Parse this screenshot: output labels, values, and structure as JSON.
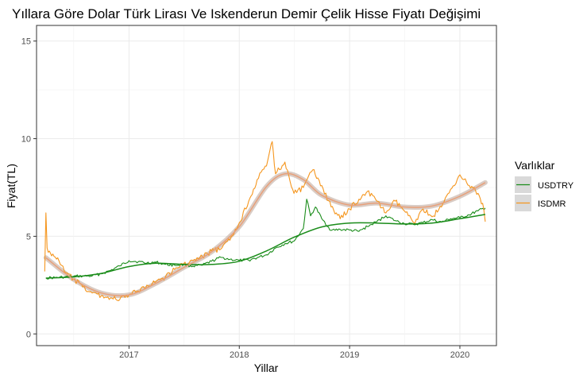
{
  "chart_data": {
    "type": "line",
    "title": "Yıllara Göre Dolar Türk Lirası Ve  Iskenderun Demir Çelik Hisse Fiyatı Değişimi",
    "xlabel": "Yillar",
    "ylabel": "Fiyat(TL)",
    "xlim": [
      "2016-03-01",
      "2020-05-01"
    ],
    "ylim": [
      -0.6,
      15.8
    ],
    "x_ticks": [
      {
        "label": "2017",
        "date": "2017-01-01"
      },
      {
        "label": "2018",
        "date": "2018-01-01"
      },
      {
        "label": "2019",
        "date": "2019-01-01"
      },
      {
        "label": "2020",
        "date": "2020-01-01"
      }
    ],
    "y_ticks": [
      0,
      5,
      10,
      15
    ],
    "grid": true,
    "legend": {
      "title": "Varlıklar",
      "position": "right"
    },
    "series": [
      {
        "name": "USDTRY",
        "color": "#1a8c1a",
        "points": [
          [
            "2016-04-01",
            2.87
          ],
          [
            "2016-05-01",
            2.88
          ],
          [
            "2016-06-01",
            2.91
          ],
          [
            "2016-07-01",
            2.95
          ],
          [
            "2016-08-01",
            2.96
          ],
          [
            "2016-09-01",
            2.97
          ],
          [
            "2016-10-01",
            3.08
          ],
          [
            "2016-11-01",
            3.25
          ],
          [
            "2016-12-01",
            3.48
          ],
          [
            "2017-01-01",
            3.75
          ],
          [
            "2017-02-01",
            3.7
          ],
          [
            "2017-03-01",
            3.63
          ],
          [
            "2017-04-01",
            3.67
          ],
          [
            "2017-05-01",
            3.56
          ],
          [
            "2017-06-01",
            3.52
          ],
          [
            "2017-07-01",
            3.55
          ],
          [
            "2017-08-01",
            3.47
          ],
          [
            "2017-09-01",
            3.52
          ],
          [
            "2017-10-01",
            3.72
          ],
          [
            "2017-11-01",
            3.92
          ],
          [
            "2017-12-01",
            3.82
          ],
          [
            "2018-01-01",
            3.76
          ],
          [
            "2018-02-01",
            3.78
          ],
          [
            "2018-03-01",
            3.9
          ],
          [
            "2018-04-01",
            4.05
          ],
          [
            "2018-05-01",
            4.4
          ],
          [
            "2018-06-01",
            4.62
          ],
          [
            "2018-07-01",
            4.75
          ],
          [
            "2018-08-01",
            5.4
          ],
          [
            "2018-08-12",
            6.9
          ],
          [
            "2018-08-25",
            6.05
          ],
          [
            "2018-09-10",
            6.5
          ],
          [
            "2018-10-01",
            5.9
          ],
          [
            "2018-11-01",
            5.3
          ],
          [
            "2018-12-01",
            5.35
          ],
          [
            "2019-01-01",
            5.32
          ],
          [
            "2019-02-01",
            5.25
          ],
          [
            "2019-03-01",
            5.5
          ],
          [
            "2019-04-01",
            5.75
          ],
          [
            "2019-05-01",
            6.05
          ],
          [
            "2019-06-01",
            5.8
          ],
          [
            "2019-07-01",
            5.65
          ],
          [
            "2019-08-01",
            5.6
          ],
          [
            "2019-09-01",
            5.7
          ],
          [
            "2019-10-01",
            5.85
          ],
          [
            "2019-11-01",
            5.72
          ],
          [
            "2019-12-01",
            5.9
          ],
          [
            "2020-01-01",
            5.95
          ],
          [
            "2020-02-01",
            6.1
          ],
          [
            "2020-03-01",
            6.3
          ],
          [
            "2020-03-25",
            6.45
          ]
        ],
        "trend": [
          [
            "2016-04-01",
            2.86
          ],
          [
            "2016-07-01",
            2.92
          ],
          [
            "2016-10-01",
            3.1
          ],
          [
            "2017-01-01",
            3.45
          ],
          [
            "2017-04-01",
            3.62
          ],
          [
            "2017-07-01",
            3.56
          ],
          [
            "2017-10-01",
            3.56
          ],
          [
            "2018-01-01",
            3.72
          ],
          [
            "2018-04-01",
            4.25
          ],
          [
            "2018-07-01",
            4.95
          ],
          [
            "2018-10-01",
            5.48
          ],
          [
            "2019-01-01",
            5.68
          ],
          [
            "2019-04-01",
            5.68
          ],
          [
            "2019-07-01",
            5.63
          ],
          [
            "2019-10-01",
            5.68
          ],
          [
            "2020-01-01",
            5.9
          ],
          [
            "2020-03-25",
            6.12
          ]
        ]
      },
      {
        "name": "ISDMR",
        "color": "#f5961e",
        "trend_color": "#e8a07a",
        "points": [
          [
            "2016-03-28",
            3.2
          ],
          [
            "2016-04-01",
            6.2
          ],
          [
            "2016-04-05",
            4.4
          ],
          [
            "2016-04-20",
            4.0
          ],
          [
            "2016-05-10",
            3.9
          ],
          [
            "2016-06-01",
            3.2
          ],
          [
            "2016-07-01",
            2.8
          ],
          [
            "2016-08-01",
            2.4
          ],
          [
            "2016-09-01",
            2.1
          ],
          [
            "2016-10-01",
            1.95
          ],
          [
            "2016-11-01",
            1.85
          ],
          [
            "2016-12-01",
            1.75
          ],
          [
            "2017-01-01",
            2.0
          ],
          [
            "2017-02-01",
            2.2
          ],
          [
            "2017-03-01",
            2.5
          ],
          [
            "2017-04-01",
            2.7
          ],
          [
            "2017-05-01",
            2.9
          ],
          [
            "2017-06-01",
            3.3
          ],
          [
            "2017-07-01",
            3.6
          ],
          [
            "2017-08-01",
            3.75
          ],
          [
            "2017-09-01",
            3.95
          ],
          [
            "2017-10-01",
            4.25
          ],
          [
            "2017-11-01",
            4.35
          ],
          [
            "2017-12-01",
            4.8
          ],
          [
            "2018-01-01",
            5.7
          ],
          [
            "2018-02-01",
            6.8
          ],
          [
            "2018-03-01",
            7.9
          ],
          [
            "2018-04-01",
            8.6
          ],
          [
            "2018-04-20",
            9.85
          ],
          [
            "2018-05-01",
            8.2
          ],
          [
            "2018-06-01",
            8.8
          ],
          [
            "2018-07-01",
            7.2
          ],
          [
            "2018-08-01",
            7.5
          ],
          [
            "2018-09-01",
            8.4
          ],
          [
            "2018-10-01",
            7.6
          ],
          [
            "2018-11-01",
            6.5
          ],
          [
            "2018-12-01",
            5.9
          ],
          [
            "2019-01-01",
            6.4
          ],
          [
            "2019-02-01",
            6.9
          ],
          [
            "2019-03-01",
            7.3
          ],
          [
            "2019-04-01",
            6.8
          ],
          [
            "2019-05-01",
            6.2
          ],
          [
            "2019-06-01",
            6.8
          ],
          [
            "2019-07-01",
            6.3
          ],
          [
            "2019-08-01",
            5.7
          ],
          [
            "2019-09-01",
            6.4
          ],
          [
            "2019-10-01",
            6.0
          ],
          [
            "2019-11-01",
            6.5
          ],
          [
            "2019-12-01",
            7.4
          ],
          [
            "2020-01-01",
            8.15
          ],
          [
            "2020-02-01",
            7.6
          ],
          [
            "2020-03-01",
            7.2
          ],
          [
            "2020-03-20",
            6.4
          ],
          [
            "2020-03-25",
            5.75
          ]
        ],
        "trend": [
          [
            "2016-04-01",
            3.9
          ],
          [
            "2016-07-01",
            2.8
          ],
          [
            "2016-10-01",
            2.1
          ],
          [
            "2017-01-01",
            2.0
          ],
          [
            "2017-04-01",
            2.6
          ],
          [
            "2017-07-01",
            3.4
          ],
          [
            "2017-10-01",
            4.2
          ],
          [
            "2018-01-01",
            5.5
          ],
          [
            "2018-04-01",
            7.55
          ],
          [
            "2018-06-01",
            8.2
          ],
          [
            "2018-08-01",
            7.9
          ],
          [
            "2018-10-01",
            7.1
          ],
          [
            "2019-01-01",
            6.6
          ],
          [
            "2019-04-01",
            6.7
          ],
          [
            "2019-07-01",
            6.5
          ],
          [
            "2019-10-01",
            6.55
          ],
          [
            "2020-01-01",
            7.05
          ],
          [
            "2020-03-25",
            7.75
          ]
        ]
      }
    ]
  }
}
